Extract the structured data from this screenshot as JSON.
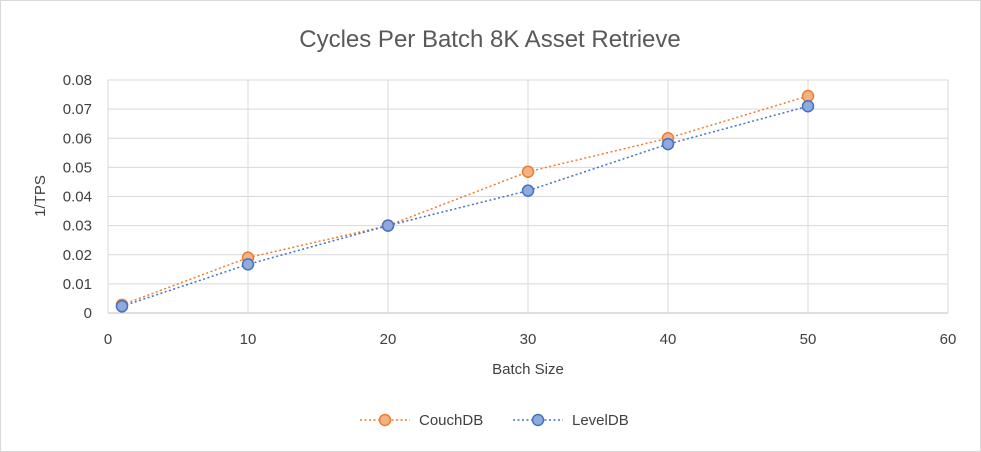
{
  "chart_data": {
    "type": "scatter",
    "title": "Cycles Per Batch 8K Asset Retrieve",
    "xlabel": "Batch Size",
    "ylabel": "1/TPS",
    "xlim": [
      0,
      60
    ],
    "ylim": [
      0,
      0.08
    ],
    "x_ticks": [
      "0",
      "10",
      "20",
      "30",
      "40",
      "50",
      "60"
    ],
    "y_ticks": [
      "0",
      "0.01",
      "0.02",
      "0.03",
      "0.04",
      "0.05",
      "0.06",
      "0.07",
      "0.08"
    ],
    "grid": true,
    "legend_position": "bottom",
    "series": [
      {
        "name": "CouchDB",
        "color": "#ED7D31",
        "marker_fill": "#F4B183",
        "line_style": "dotted",
        "points": [
          [
            1,
            0.0028
          ],
          [
            10,
            0.019
          ],
          [
            20,
            0.03
          ],
          [
            30,
            0.0485
          ],
          [
            40,
            0.06
          ],
          [
            50,
            0.0745
          ]
        ]
      },
      {
        "name": "LevelDB",
        "color": "#4472C4",
        "marker_fill": "#8FAADC",
        "line_style": "dotted",
        "points": [
          [
            1,
            0.0023
          ],
          [
            10,
            0.0167
          ],
          [
            20,
            0.03
          ],
          [
            30,
            0.042
          ],
          [
            40,
            0.058
          ],
          [
            50,
            0.071
          ]
        ]
      }
    ]
  }
}
